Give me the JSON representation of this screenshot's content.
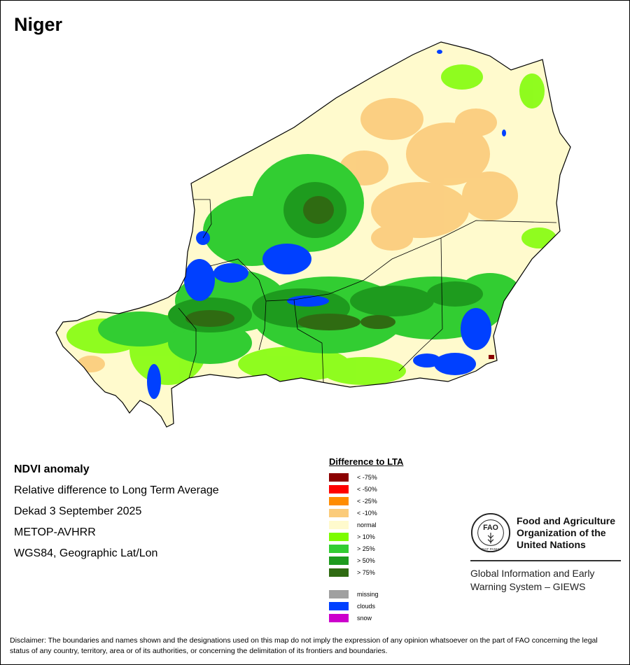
{
  "map": {
    "title": "Niger",
    "legend_colors": {
      "lt75": "#8B0000",
      "lt50": "#FF0000",
      "lt25": "#FF8C00",
      "lt10": "#FBCB7A",
      "normal": "#FFFACD",
      "gt10": "#7CFC00",
      "gt25": "#32CD32",
      "gt50": "#1E9B1E",
      "gt75": "#2F6B12",
      "missing": "#A0A0A0",
      "clouds": "#0040FF",
      "snow": "#CC00CC"
    }
  },
  "info": {
    "heading": "NDVI anomaly",
    "line1": "Relative difference to Long Term Average",
    "line2": "Dekad 3 September 2025",
    "line3": "METOP-AVHRR",
    "line4": "WGS84, Geographic Lat/Lon"
  },
  "legend": {
    "title": "Difference to LTA",
    "classes": [
      {
        "label": "< -75%",
        "color": "#8B0000"
      },
      {
        "label": "< -50%",
        "color": "#FF0000"
      },
      {
        "label": "< -25%",
        "color": "#FF8C00"
      },
      {
        "label": "< -10%",
        "color": "#FBCB7A"
      },
      {
        "label": "normal",
        "color": "#FFFACD"
      },
      {
        "label": "> 10%",
        "color": "#7CFC00"
      },
      {
        "label": "> 25%",
        "color": "#32CD32"
      },
      {
        "label": "> 50%",
        "color": "#1E9B1E"
      },
      {
        "label": "> 75%",
        "color": "#2F6B12"
      }
    ],
    "extras": [
      {
        "label": "missing",
        "color": "#A0A0A0"
      },
      {
        "label": "clouds",
        "color": "#0040FF"
      },
      {
        "label": "snow",
        "color": "#CC00CC"
      }
    ]
  },
  "org": {
    "name_line1": "Food and Agriculture",
    "name_line2": "Organization of the",
    "name_line3": "United Nations",
    "logo_text": "FAO",
    "logo_motto": "FIAT PANIS",
    "system_line1": "Global Information and Early",
    "system_line2": "Warning System – GIEWS"
  },
  "disclaimer": "Disclaimer: The boundaries and names shown and the designations used on this map do not imply the expression of any opinion whatsoever on the part of FAO concerning the legal status of any country, territory, area or of its authorities, or concerning the delimitation of its frontiers and boundaries."
}
